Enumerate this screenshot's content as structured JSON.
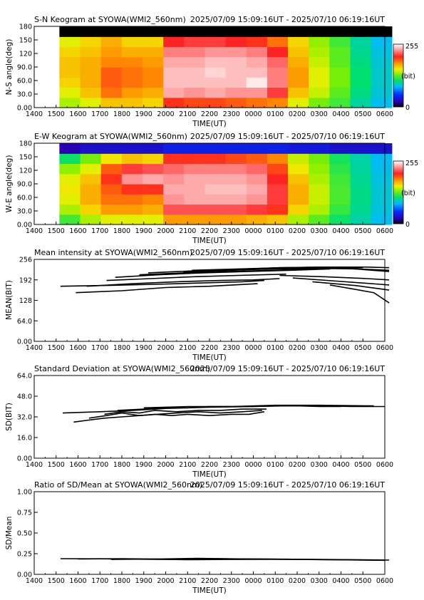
{
  "figure": {
    "time_ticks": [
      "1400",
      "1500",
      "1600",
      "1700",
      "1800",
      "1900",
      "2000",
      "2100",
      "2200",
      "2300",
      "0000",
      "0100",
      "0200",
      "0300",
      "0400",
      "0500",
      "0600"
    ],
    "xlabel": "TIME(UT)"
  },
  "colorbar": {
    "max_label": "255",
    "min_label": "0",
    "unit": "(bit)"
  },
  "chart_data": [
    {
      "type": "heatmap",
      "title": "S-N Keogram at SYOWA(WMI2_560nm)",
      "period": "2025/07/09 15:09:16UT - 2025/07/10 06:19:16UT",
      "xlabel": "TIME(UT)",
      "ylabel": "N-S angle(deg)",
      "x_range_hours": [
        14,
        30
      ],
      "data_start_hour": 15.15,
      "data_end_hour": 30.32,
      "ylim": [
        0,
        180
      ],
      "yticks": [
        "0.00",
        "30.0",
        "60.0",
        "90.0",
        "120",
        "150",
        "180"
      ],
      "colorbar_range": [
        0,
        255
      ],
      "hourly_brightness": [
        {
          "t": "1500",
          "v": [
            140,
            150,
            160,
            165,
            165,
            160,
            150,
            0
          ]
        },
        {
          "t": "1600",
          "v": [
            150,
            165,
            170,
            170,
            170,
            165,
            160,
            0
          ]
        },
        {
          "t": "1700",
          "v": [
            165,
            185,
            190,
            190,
            180,
            175,
            170,
            0
          ]
        },
        {
          "t": "1800",
          "v": [
            165,
            175,
            185,
            185,
            180,
            170,
            160,
            0
          ]
        },
        {
          "t": "1900",
          "v": [
            160,
            170,
            180,
            180,
            175,
            170,
            160,
            0
          ]
        },
        {
          "t": "2000",
          "v": [
            200,
            235,
            240,
            240,
            235,
            225,
            205,
            0
          ]
        },
        {
          "t": "2100",
          "v": [
            195,
            230,
            240,
            240,
            235,
            225,
            210,
            0
          ]
        },
        {
          "t": "2200",
          "v": [
            195,
            235,
            240,
            245,
            240,
            230,
            210,
            0
          ]
        },
        {
          "t": "2300",
          "v": [
            190,
            230,
            240,
            240,
            240,
            230,
            205,
            0
          ]
        },
        {
          "t": "0000",
          "v": [
            185,
            230,
            250,
            240,
            235,
            225,
            200,
            0
          ]
        },
        {
          "t": "0100",
          "v": [
            180,
            210,
            225,
            225,
            220,
            205,
            185,
            0
          ]
        },
        {
          "t": "0200",
          "v": [
            150,
            165,
            175,
            175,
            170,
            165,
            160,
            0
          ]
        },
        {
          "t": "0300",
          "v": [
            130,
            145,
            150,
            150,
            145,
            140,
            135,
            0
          ]
        },
        {
          "t": "0400",
          "v": [
            120,
            125,
            130,
            130,
            125,
            125,
            120,
            0
          ]
        },
        {
          "t": "0500",
          "v": [
            100,
            105,
            108,
            108,
            105,
            102,
            100,
            0
          ]
        },
        {
          "t": "0600",
          "v": [
            85,
            90,
            92,
            92,
            90,
            88,
            85,
            0
          ]
        }
      ]
    },
    {
      "type": "heatmap",
      "title": "E-W Keogram at SYOWA(WMI2_560nm)",
      "period": "2025/07/09 15:09:16UT - 2025/07/10 06:19:16UT",
      "xlabel": "TIME(UT)",
      "ylabel": "W-E angle(deg)",
      "x_range_hours": [
        14,
        30
      ],
      "data_start_hour": 15.15,
      "data_end_hour": 30.32,
      "ylim": [
        0,
        180
      ],
      "yticks": [
        "0.00",
        "30.0",
        "60.0",
        "90.0",
        "120",
        "150",
        "180"
      ],
      "colorbar_range": [
        0,
        255
      ],
      "hourly_brightness": [
        {
          "t": "1500",
          "v": [
            120,
            140,
            150,
            155,
            150,
            135,
            110,
            20
          ]
        },
        {
          "t": "1600",
          "v": [
            140,
            160,
            170,
            170,
            165,
            150,
            130,
            30
          ]
        },
        {
          "t": "1700",
          "v": [
            150,
            175,
            185,
            190,
            200,
            190,
            155,
            30
          ]
        },
        {
          "t": "1800",
          "v": [
            150,
            175,
            185,
            200,
            230,
            210,
            165,
            30
          ]
        },
        {
          "t": "1900",
          "v": [
            150,
            170,
            180,
            200,
            235,
            215,
            160,
            30
          ]
        },
        {
          "t": "2000",
          "v": [
            175,
            215,
            230,
            235,
            230,
            220,
            200,
            40
          ]
        },
        {
          "t": "2100",
          "v": [
            175,
            215,
            235,
            235,
            235,
            225,
            200,
            40
          ]
        },
        {
          "t": "2200",
          "v": [
            175,
            215,
            235,
            240,
            235,
            225,
            200,
            40
          ]
        },
        {
          "t": "2300",
          "v": [
            175,
            215,
            235,
            240,
            235,
            225,
            195,
            40
          ]
        },
        {
          "t": "0000",
          "v": [
            170,
            210,
            230,
            235,
            230,
            220,
            190,
            40
          ]
        },
        {
          "t": "0100",
          "v": [
            165,
            200,
            210,
            210,
            205,
            195,
            180,
            40
          ]
        },
        {
          "t": "0200",
          "v": [
            140,
            160,
            170,
            170,
            165,
            155,
            145,
            35
          ]
        },
        {
          "t": "0300",
          "v": [
            125,
            140,
            145,
            145,
            140,
            135,
            130,
            35
          ]
        },
        {
          "t": "0400",
          "v": [
            110,
            118,
            122,
            122,
            120,
            116,
            112,
            30
          ]
        },
        {
          "t": "0500",
          "v": [
            98,
            102,
            104,
            104,
            102,
            100,
            98,
            30
          ]
        },
        {
          "t": "0600",
          "v": [
            85,
            88,
            90,
            90,
            88,
            86,
            84,
            30
          ]
        }
      ]
    },
    {
      "type": "line",
      "title": "Mean intensity at SYOWA(WMI2_560nm)",
      "period": "2025/07/09 15:09:16UT - 2025/07/10 06:19:16UT",
      "xlabel": "TIME(UT)",
      "ylabel": "MEAN(BIT)",
      "x_range_hours": [
        14,
        30
      ],
      "ylim": [
        0,
        256
      ],
      "yticks": [
        "0.00",
        "64.0",
        "128",
        "192",
        "256"
      ],
      "series": [
        {
          "x": [
            15.2,
            17.5,
            19.5,
            21.5,
            23.5,
            24.5
          ],
          "y": [
            172,
            175,
            178,
            182,
            186,
            190
          ]
        },
        {
          "x": [
            15.9,
            18,
            20,
            22,
            24.2
          ],
          "y": [
            152,
            158,
            168,
            172,
            180
          ]
        },
        {
          "x": [
            16.4,
            18.5,
            20.5,
            22.5,
            24,
            25.2
          ],
          "y": [
            172,
            180,
            186,
            190,
            192,
            196
          ]
        },
        {
          "x": [
            17.3,
            19.3,
            21.3,
            23.3,
            25.5
          ],
          "y": [
            190,
            196,
            202,
            206,
            210
          ]
        },
        {
          "x": [
            17.7,
            19.7,
            21.7,
            23.7,
            25.7,
            27.5
          ],
          "y": [
            200,
            208,
            214,
            218,
            222,
            226
          ]
        },
        {
          "x": [
            18.8,
            20.8,
            22.8,
            24.8,
            26.8,
            29
          ],
          "y": [
            208,
            214,
            218,
            222,
            226,
            230
          ]
        },
        {
          "x": [
            19.2,
            21.2,
            23.2,
            25.2,
            27.2
          ],
          "y": [
            214,
            220,
            225,
            230,
            232
          ]
        },
        {
          "x": [
            20.8,
            22.8,
            24.8,
            26.8,
            28.8,
            30.2
          ],
          "y": [
            216,
            222,
            226,
            228,
            226,
            222
          ]
        },
        {
          "x": [
            21.2,
            23.2,
            25.2,
            27.2,
            29.2,
            30.2
          ],
          "y": [
            222,
            226,
            230,
            232,
            232,
            230
          ]
        },
        {
          "x": [
            22.3,
            24.3,
            26.3,
            28.3,
            30.2
          ],
          "y": [
            220,
            226,
            230,
            228,
            218
          ]
        },
        {
          "x": [
            25.2,
            27.2,
            29.2,
            30.2
          ],
          "y": [
            206,
            202,
            196,
            192
          ]
        },
        {
          "x": [
            25.8,
            27.8,
            29.8,
            30.2
          ],
          "y": [
            198,
            188,
            178,
            176
          ]
        },
        {
          "x": [
            26.7,
            28.7,
            30.2
          ],
          "y": [
            186,
            174,
            160
          ]
        },
        {
          "x": [
            27.5,
            29.5,
            30.2
          ],
          "y": [
            176,
            152,
            120
          ]
        }
      ]
    },
    {
      "type": "line",
      "title": "Standard Deviation at SYOWA(WMI2_560nm)",
      "period": "2025/07/09 15:09:16UT - 2025/07/10 06:19:16UT",
      "xlabel": "TIME(UT)",
      "ylabel": "SD(BIT)",
      "x_range_hours": [
        14,
        30
      ],
      "ylim": [
        0,
        64
      ],
      "yticks": [
        "0.00",
        "16.0",
        "32.0",
        "48.0",
        "64.0"
      ],
      "series": [
        {
          "x": [
            15.3,
            17,
            18.5,
            20,
            22,
            24,
            25.5,
            27,
            28.5,
            30
          ],
          "y": [
            35,
            36,
            37,
            38.5,
            39.5,
            40,
            40.5,
            40.5,
            40,
            40
          ]
        },
        {
          "x": [
            15.8,
            16.5,
            17.2,
            18,
            18.8,
            19.5,
            20.3,
            21,
            22,
            23,
            23.8,
            24.5
          ],
          "y": [
            28,
            29.5,
            31,
            32,
            33,
            34,
            33,
            34,
            33,
            34,
            34,
            36
          ]
        },
        {
          "x": [
            16.5,
            17.3,
            18,
            18.8,
            19.6,
            20.5,
            21.5,
            22.5,
            23.5,
            24.4
          ],
          "y": [
            31,
            33,
            35,
            33,
            34,
            35,
            36,
            35,
            36,
            37
          ]
        },
        {
          "x": [
            17.2,
            18,
            18.8,
            19.5,
            20.5,
            21.5,
            22.5,
            23.5,
            24.6
          ],
          "y": [
            34,
            36,
            35,
            37,
            36,
            37,
            37,
            38,
            38
          ]
        },
        {
          "x": [
            17.8,
            19,
            20,
            21,
            22,
            23,
            24,
            25,
            26,
            27,
            28
          ],
          "y": [
            37,
            38,
            39,
            39,
            40,
            40,
            40,
            40.5,
            40.5,
            40,
            40
          ]
        },
        {
          "x": [
            19,
            21,
            23,
            25,
            27,
            29.5
          ],
          "y": [
            39,
            40,
            40,
            41,
            41,
            40.5
          ]
        }
      ]
    },
    {
      "type": "line",
      "title": "Ratio of SD/Mean at SYOWA(WMI2_560nm)",
      "period": "2025/07/09 15:09:16UT - 2025/07/10 06:19:16UT",
      "xlabel": "TIME(UT)",
      "ylabel": "SD/Mean",
      "x_range_hours": [
        14,
        30
      ],
      "ylim": [
        0,
        1
      ],
      "yticks": [
        "0.00",
        "0.25",
        "0.50",
        "0.75",
        "1.00"
      ],
      "series": [
        {
          "x": [
            15.2,
            17,
            19,
            21,
            23,
            25,
            27,
            29,
            30.2
          ],
          "y": [
            0.19,
            0.188,
            0.183,
            0.178,
            0.18,
            0.182,
            0.18,
            0.176,
            0.172
          ]
        },
        {
          "x": [
            16,
            18,
            20,
            22,
            24,
            26,
            28,
            30
          ],
          "y": [
            0.186,
            0.19,
            0.184,
            0.19,
            0.186,
            0.18,
            0.176,
            0.17
          ]
        },
        {
          "x": [
            17.5,
            19.5,
            21.5,
            23.5,
            25.5,
            27.5,
            29.5
          ],
          "y": [
            0.18,
            0.185,
            0.193,
            0.186,
            0.184,
            0.178,
            0.172
          ]
        }
      ]
    }
  ]
}
